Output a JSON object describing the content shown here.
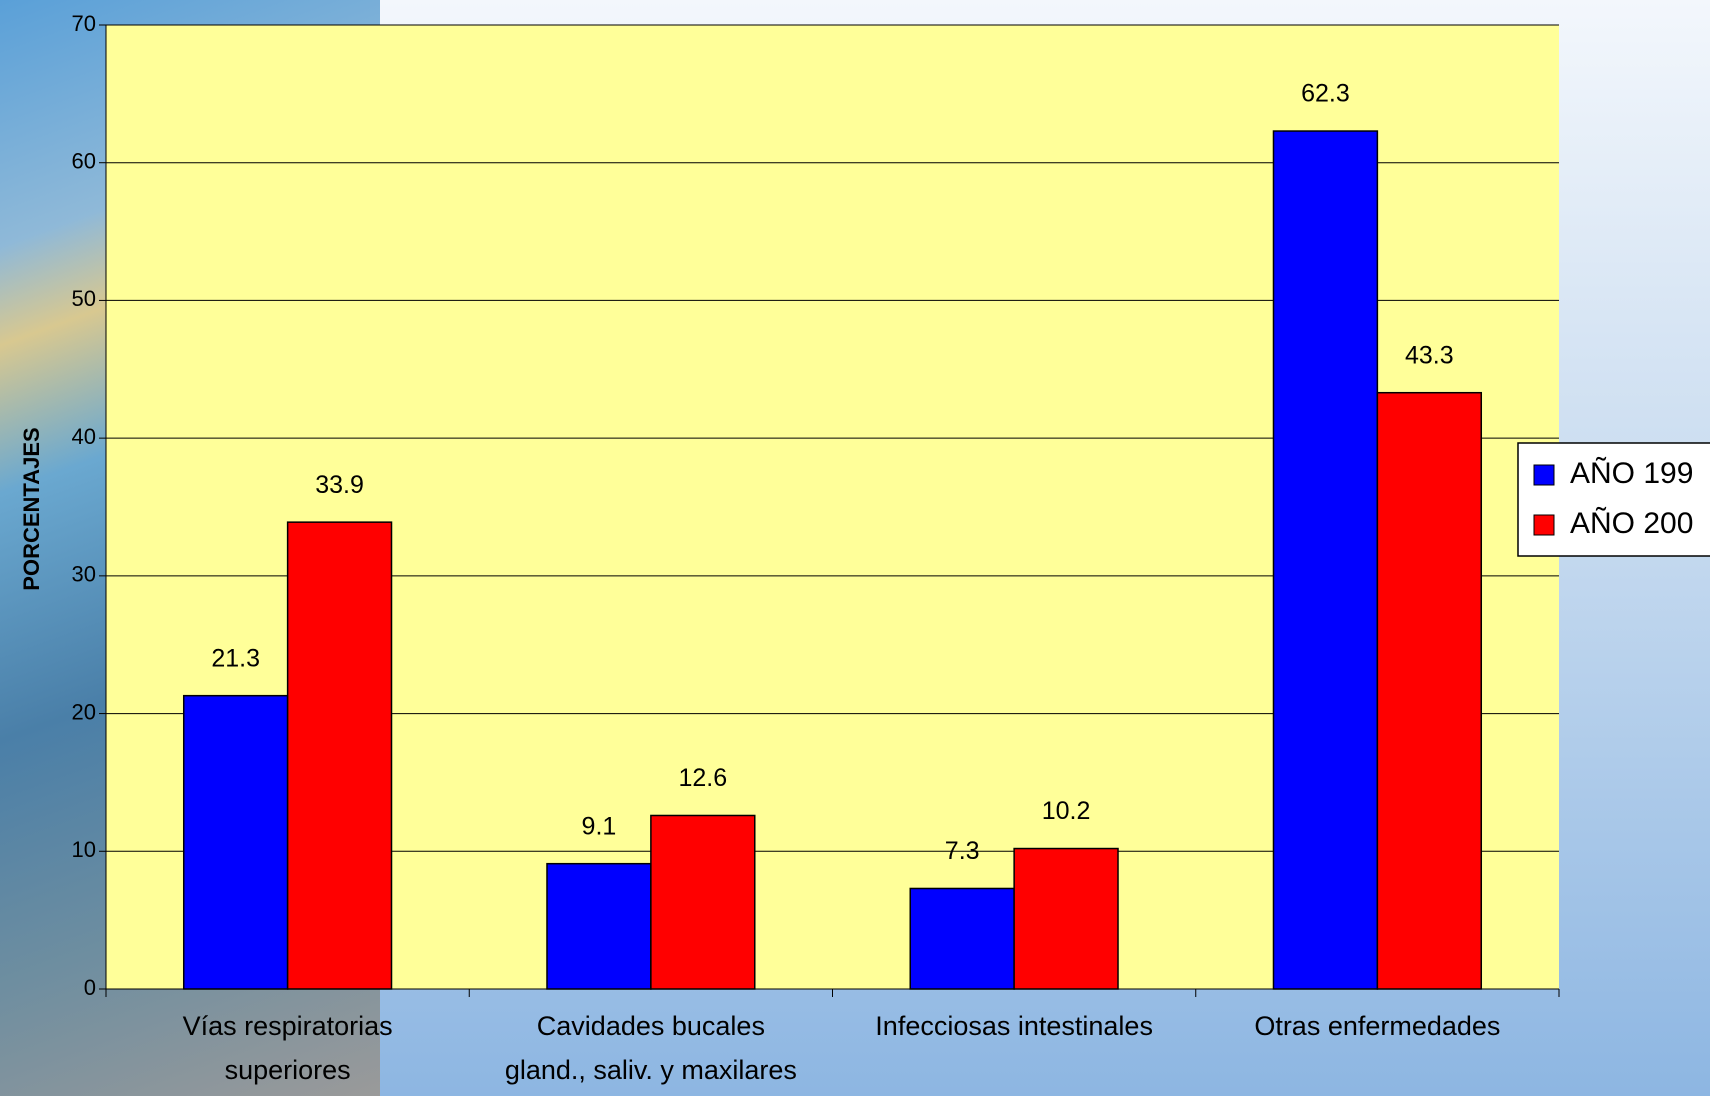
{
  "chart_data": {
    "type": "bar",
    "y_label": "PORCENTAJES",
    "categories": [
      "Vías respiratorias\nsuperiores",
      "Cavidades bucales\ngland., saliv. y maxilares",
      "Infecciosas intestinales",
      "Otras enfermedades"
    ],
    "series": [
      {
        "name": "AÑO 199",
        "color": "#0000ff",
        "values": [
          21.3,
          9.1,
          7.3,
          62.3
        ]
      },
      {
        "name": "AÑO 200",
        "color": "#ff0000",
        "values": [
          33.9,
          12.6,
          10.2,
          43.3
        ]
      }
    ],
    "ylim": [
      0,
      70
    ],
    "yticks": [
      0,
      10,
      20,
      30,
      40,
      50,
      60,
      70
    ],
    "grid": true,
    "plot_background": "#ffff99",
    "legend": "right"
  }
}
